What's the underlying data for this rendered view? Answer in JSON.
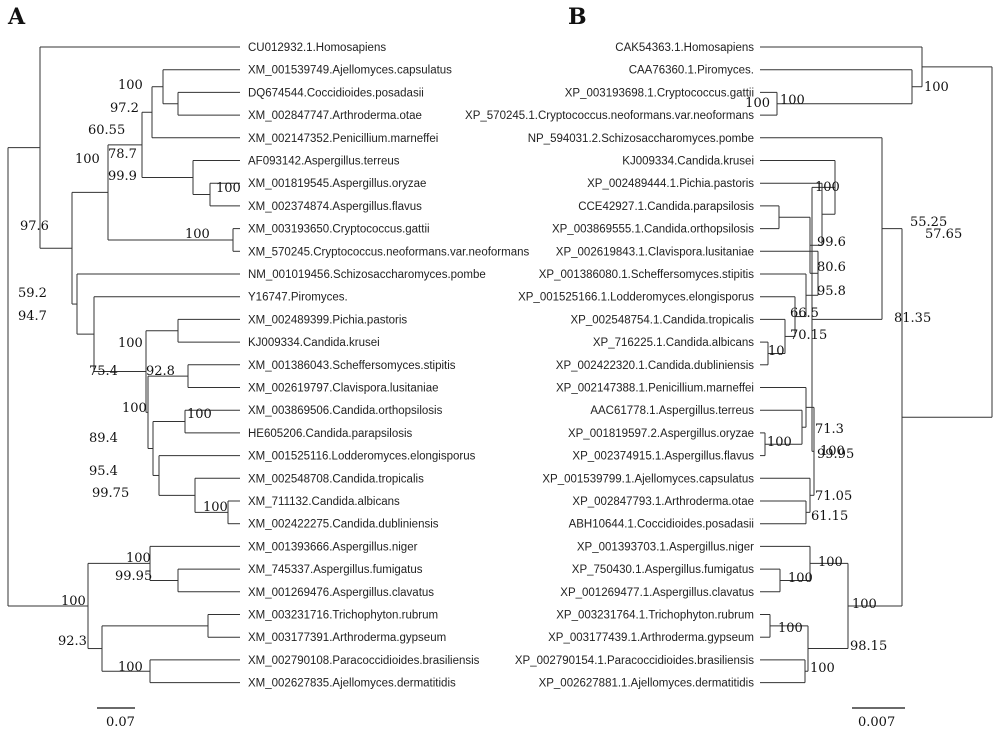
{
  "panels": {
    "A": {
      "label": "A",
      "scale_label": "0.07",
      "leaves": [
        "CU012932.1.Homosapiens",
        "XM_001539749.Ajellomyces.capsulatus",
        "DQ674544.Coccidioides.posadasii",
        "XM_002847747.Arthroderma.otae",
        "XM_002147352.Penicillium.marneffei",
        "AF093142.Aspergillus.terreus",
        "XM_001819545.Aspergillus.oryzae",
        "XM_002374874.Aspergillus.flavus",
        "XM_003193650.Cryptococcus.gattii",
        "XM_570245.Cryptococcus.neoformans.var.neoformans",
        "NM_001019456.Schizosaccharomyces.pombe",
        "Y16747.Piromyces.",
        "XM_002489399.Pichia.pastoris",
        "KJ009334.Candida.krusei",
        "XM_001386043.Scheffersomyces.stipitis",
        "XM_002619797.Clavispora.lusitaniae",
        "XM_003869506.Candida.orthopsilosis",
        "HE605206.Candida.parapsilosis",
        "XM_001525116.Lodderomyces.elongisporus",
        "XM_002548708.Candida.tropicalis",
        "XM_711132.Candida.albicans",
        "XM_002422275.Candida.dubliniensis",
        "XM_001393666.Aspergillus.niger",
        "XM_745337.Aspergillus.fumigatus",
        "XM_001269476.Aspergillus.clavatus",
        "XM_003231716.Trichophyton.rubrum",
        "XM_003177391.Arthroderma.gypseum",
        "XM_002790108.Paracoccidioides.brasiliensis",
        "XM_002627835.Ajellomyces.dermatitidis"
      ],
      "support_values": [
        "100",
        "97.2",
        "60.55",
        "78.7",
        "99.9",
        "100",
        "100",
        "100",
        "97.6",
        "59.2",
        "94.7",
        "100",
        "75.4",
        "92.8",
        "100",
        "100",
        "89.4",
        "95.4",
        "99.75",
        "100",
        "100",
        "99.95",
        "100",
        "92.3",
        "100"
      ]
    },
    "B": {
      "label": "B",
      "scale_label": "0.007",
      "leaves": [
        "CAK54363.1.Homosapiens",
        "CAA76360.1.Piromyces.",
        "XP_003193698.1.Cryptococcus.gattii",
        "XP_570245.1.Cryptococcus.neoformans.var.neoformans",
        "NP_594031.2.Schizosaccharomyces.pombe",
        "KJ009334.Candida.krusei",
        "XP_002489444.1.Pichia.pastoris",
        "CCE42927.1.Candida.parapsilosis",
        "XP_003869555.1.Candida.orthopsilosis",
        "XP_002619843.1.Clavispora.lusitaniae",
        "XP_001386080.1.Scheffersomyces.stipitis",
        "XP_001525166.1.Lodderomyces.elongisporus",
        "XP_002548754.1.Candida.tropicalis",
        "XP_716225.1.Candida.albicans",
        "XP_002422320.1.Candida.dubliniensis",
        "XP_002147388.1.Penicillium.marneffei",
        "AAC61778.1.Aspergillus.terreus",
        "XP_001819597.2.Aspergillus.oryzae",
        "XP_002374915.1.Aspergillus.flavus",
        "XP_001539799.1.Ajellomyces.capsulatus",
        "XP_002847793.1.Arthroderma.otae",
        "ABH10644.1.Coccidioides.posadasii",
        "XP_001393703.1.Aspergillus.niger",
        "XP_750430.1.Aspergillus.fumigatus",
        "XP_001269477.1.Aspergillus.clavatus",
        "XP_003231764.1.Trichophyton.rubrum",
        "XP_003177439.1.Arthroderma.gypseum",
        "XP_002790154.1.Paracoccidioides.brasiliensis",
        "XP_002627881.1.Ajellomyces.dermatitidis"
      ],
      "support_values": [
        "100",
        "100",
        "57.65",
        "100",
        "100",
        "99.6",
        "80.6",
        "95.8",
        "66.5",
        "70.15",
        "10",
        "55.25",
        "81.35",
        "71.3",
        "99.95",
        "100",
        "100",
        "71.05",
        "61.15",
        "100",
        "100",
        "100",
        "100",
        "98.15",
        "100"
      ]
    }
  }
}
